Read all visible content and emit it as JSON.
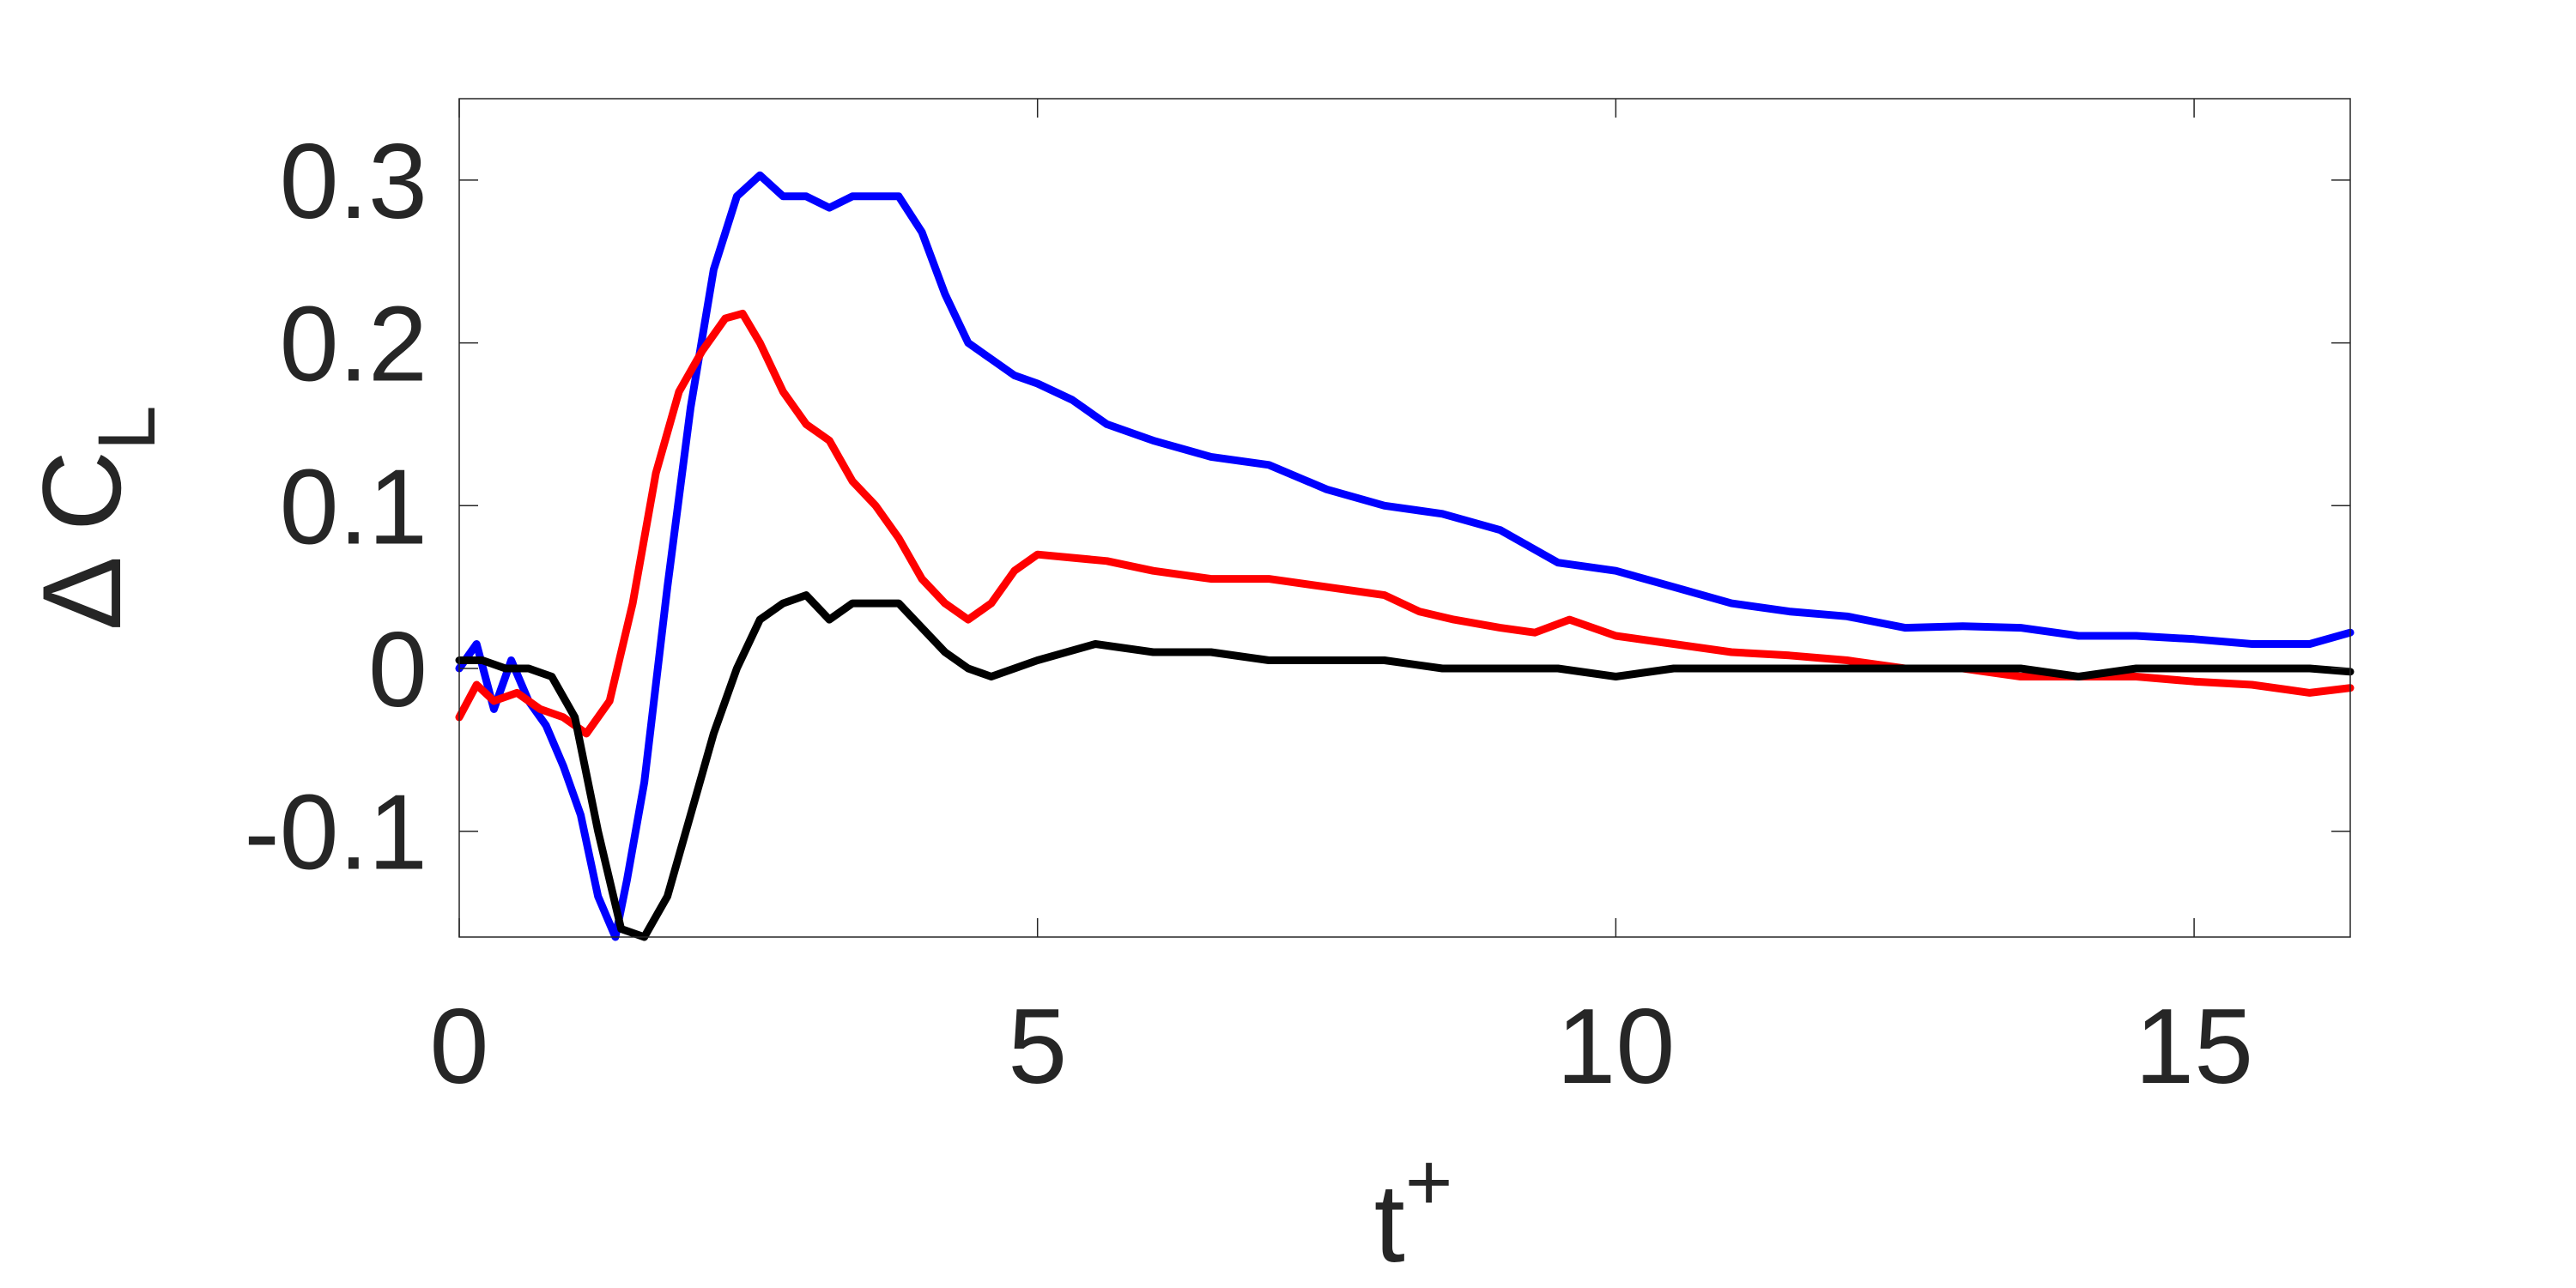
{
  "chart_data": {
    "type": "line",
    "xlabel": "t",
    "xlabel_superscript": "+",
    "ylabel": "Δ C",
    "ylabel_subscript": "L",
    "xlim": [
      0,
      16.35
    ],
    "ylim": [
      -0.165,
      0.35
    ],
    "xticks": [
      0,
      5,
      10,
      15
    ],
    "xtick_labels": [
      "0",
      "5",
      "10",
      "15"
    ],
    "yticks": [
      -0.1,
      0,
      0.1,
      0.2,
      0.3
    ],
    "ytick_labels": [
      "-0.1",
      "0",
      "0.1",
      "0.2",
      "0.3"
    ],
    "grid": false,
    "box": true,
    "series": [
      {
        "color": "#0000ff",
        "x": [
          0,
          0.15,
          0.3,
          0.45,
          0.6,
          0.75,
          0.9,
          1.05,
          1.2,
          1.35,
          1.45,
          1.6,
          1.8,
          2.0,
          2.2,
          2.4,
          2.6,
          2.8,
          3.0,
          3.2,
          3.4,
          3.6,
          3.8,
          4.0,
          4.2,
          4.4,
          4.6,
          4.8,
          5.0,
          5.3,
          5.6,
          6.0,
          6.5,
          7.0,
          7.5,
          8.0,
          8.5,
          9.0,
          9.5,
          10.0,
          10.5,
          11.0,
          11.5,
          12.0,
          12.5,
          13.0,
          13.5,
          14.0,
          14.5,
          15.0,
          15.5,
          16.0,
          16.35
        ],
        "y": [
          0.0,
          0.015,
          -0.025,
          0.005,
          -0.02,
          -0.035,
          -0.06,
          -0.09,
          -0.14,
          -0.165,
          -0.13,
          -0.07,
          0.05,
          0.16,
          0.245,
          0.29,
          0.303,
          0.29,
          0.29,
          0.283,
          0.29,
          0.29,
          0.29,
          0.268,
          0.23,
          0.2,
          0.19,
          0.18,
          0.175,
          0.165,
          0.15,
          0.14,
          0.13,
          0.125,
          0.11,
          0.1,
          0.095,
          0.085,
          0.065,
          0.06,
          0.05,
          0.04,
          0.035,
          0.032,
          0.025,
          0.026,
          0.025,
          0.02,
          0.02,
          0.018,
          0.015,
          0.015,
          0.022
        ]
      },
      {
        "color": "#ff0000",
        "x": [
          0,
          0.15,
          0.3,
          0.5,
          0.7,
          0.9,
          1.1,
          1.3,
          1.5,
          1.7,
          1.9,
          2.1,
          2.3,
          2.45,
          2.6,
          2.8,
          3.0,
          3.2,
          3.4,
          3.6,
          3.8,
          4.0,
          4.2,
          4.4,
          4.6,
          4.8,
          5.0,
          5.3,
          5.6,
          6.0,
          6.5,
          7.0,
          7.5,
          8.0,
          8.3,
          8.6,
          9.0,
          9.3,
          9.6,
          10.0,
          10.5,
          11.0,
          11.5,
          12.0,
          12.5,
          13.0,
          13.5,
          14.0,
          14.5,
          15.0,
          15.5,
          16.0,
          16.35
        ],
        "y": [
          -0.03,
          -0.01,
          -0.02,
          -0.015,
          -0.025,
          -0.03,
          -0.04,
          -0.02,
          0.04,
          0.12,
          0.17,
          0.195,
          0.215,
          0.218,
          0.2,
          0.17,
          0.15,
          0.14,
          0.115,
          0.1,
          0.08,
          0.055,
          0.04,
          0.03,
          0.04,
          0.06,
          0.07,
          0.068,
          0.066,
          0.06,
          0.055,
          0.055,
          0.05,
          0.045,
          0.035,
          0.03,
          0.025,
          0.022,
          0.03,
          0.02,
          0.015,
          0.01,
          0.008,
          0.005,
          0.0,
          0.0,
          -0.005,
          -0.005,
          -0.005,
          -0.008,
          -0.01,
          -0.015,
          -0.012
        ]
      },
      {
        "color": "#000000",
        "x": [
          0,
          0.2,
          0.4,
          0.6,
          0.8,
          1.0,
          1.2,
          1.4,
          1.6,
          1.8,
          2.0,
          2.2,
          2.4,
          2.6,
          2.8,
          3.0,
          3.2,
          3.4,
          3.6,
          3.8,
          4.0,
          4.2,
          4.4,
          4.6,
          4.8,
          5.0,
          5.5,
          6.0,
          6.5,
          7.0,
          7.5,
          8.0,
          8.5,
          9.0,
          9.5,
          10.0,
          10.5,
          11.0,
          11.5,
          12.0,
          12.5,
          13.0,
          13.5,
          14.0,
          14.5,
          15.0,
          15.5,
          16.0,
          16.35
        ],
        "y": [
          0.005,
          0.005,
          0.0,
          0.0,
          -0.005,
          -0.03,
          -0.1,
          -0.16,
          -0.165,
          -0.14,
          -0.09,
          -0.04,
          0.0,
          0.03,
          0.04,
          0.045,
          0.03,
          0.04,
          0.04,
          0.04,
          0.025,
          0.01,
          0.0,
          -0.005,
          0.0,
          0.005,
          0.015,
          0.01,
          0.01,
          0.005,
          0.005,
          0.005,
          0.0,
          0.0,
          0.0,
          -0.005,
          0.0,
          0.0,
          0.0,
          0.0,
          0.0,
          0.0,
          0.0,
          -0.005,
          0.0,
          0.0,
          0.0,
          0.0,
          -0.002
        ]
      }
    ]
  }
}
